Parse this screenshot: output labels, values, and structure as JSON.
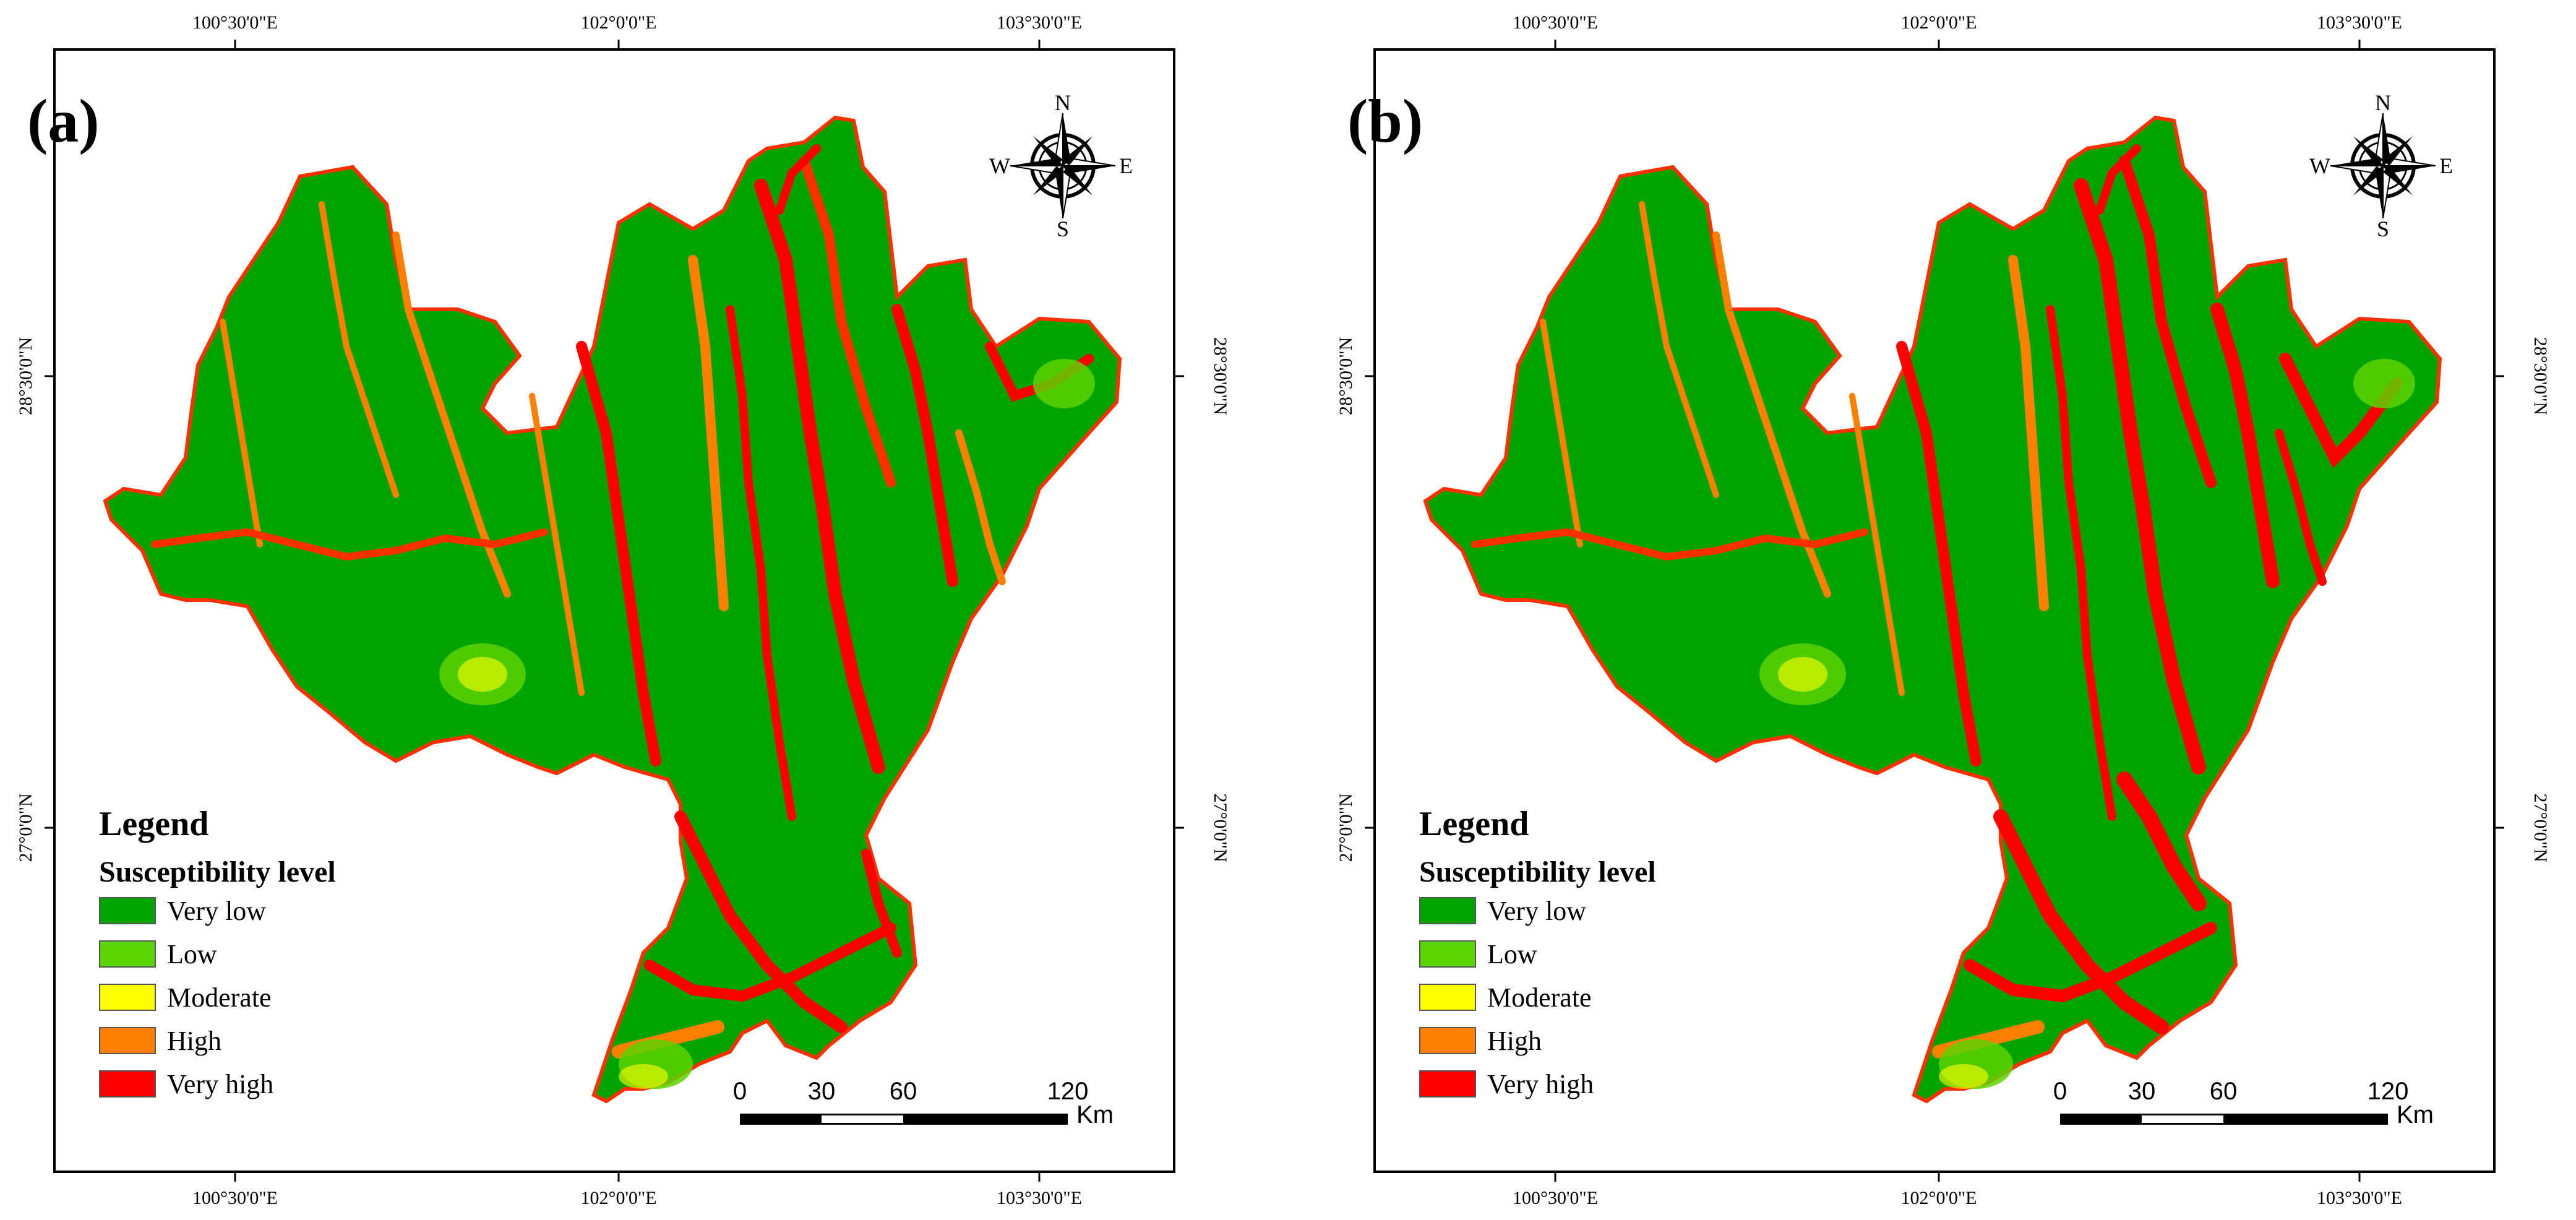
{
  "panels": [
    {
      "label": "(a)",
      "longitude_ticks": [
        "100°30'0\"E",
        "102°0'0\"E",
        "103°30'0\"E"
      ],
      "latitude_ticks": [
        "28°30'0\"N",
        "27°0'0\"N"
      ],
      "legend": {
        "title": "Legend",
        "subtitle": "Susceptibility level",
        "items": [
          {
            "label": "Very low",
            "color": "#00a400"
          },
          {
            "label": "Low",
            "color": "#5cd400"
          },
          {
            "label": "Moderate",
            "color": "#ffff00"
          },
          {
            "label": "High",
            "color": "#ff8000"
          },
          {
            "label": "Very high",
            "color": "#ff0000"
          }
        ]
      },
      "scale_bar": {
        "ticks": [
          "0",
          "30",
          "60",
          "120"
        ],
        "unit": "Km"
      },
      "compass": {
        "n": "N",
        "s": "S",
        "e": "E",
        "w": "W"
      }
    },
    {
      "label": "(b)",
      "longitude_ticks": [
        "100°30'0\"E",
        "102°0'0\"E",
        "103°30'0\"E"
      ],
      "latitude_ticks": [
        "28°30'0\"N",
        "27°0'0\"N"
      ],
      "legend": {
        "title": "Legend",
        "subtitle": "Susceptibility level",
        "items": [
          {
            "label": "Very low",
            "color": "#00a400"
          },
          {
            "label": "Low",
            "color": "#5cd400"
          },
          {
            "label": "Moderate",
            "color": "#ffff00"
          },
          {
            "label": "High",
            "color": "#ff8000"
          },
          {
            "label": "Very high",
            "color": "#ff0000"
          }
        ]
      },
      "scale_bar": {
        "ticks": [
          "0",
          "30",
          "60",
          "120"
        ],
        "unit": "Km"
      },
      "compass": {
        "n": "N",
        "s": "S",
        "e": "E",
        "w": "W"
      }
    }
  ]
}
